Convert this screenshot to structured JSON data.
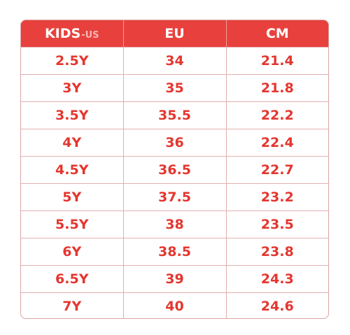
{
  "table": {
    "headers": {
      "kids_main": "KIDS",
      "kids_sub": "-US",
      "eu": "EU",
      "cm": "CM"
    },
    "rows": [
      {
        "kids": "2.5Y",
        "eu": "34",
        "cm": "21.4"
      },
      {
        "kids": "3Y",
        "eu": "35",
        "cm": "21.8"
      },
      {
        "kids": "3.5Y",
        "eu": "35.5",
        "cm": "22.2"
      },
      {
        "kids": "4Y",
        "eu": "36",
        "cm": "22.4"
      },
      {
        "kids": "4.5Y",
        "eu": "36.5",
        "cm": "22.7"
      },
      {
        "kids": "5Y",
        "eu": "37.5",
        "cm": "23.2"
      },
      {
        "kids": "5.5Y",
        "eu": "38",
        "cm": "23.5"
      },
      {
        "kids": "6Y",
        "eu": "38.5",
        "cm": "23.8"
      },
      {
        "kids": "6.5Y",
        "eu": "39",
        "cm": "24.3"
      },
      {
        "kids": "7Y",
        "eu": "40",
        "cm": "24.6"
      }
    ]
  },
  "colors": {
    "header_background": "#e8413d",
    "header_text": "#ffffff",
    "cell_text": "#e4362f",
    "grid_line": "#e2b0b0"
  }
}
